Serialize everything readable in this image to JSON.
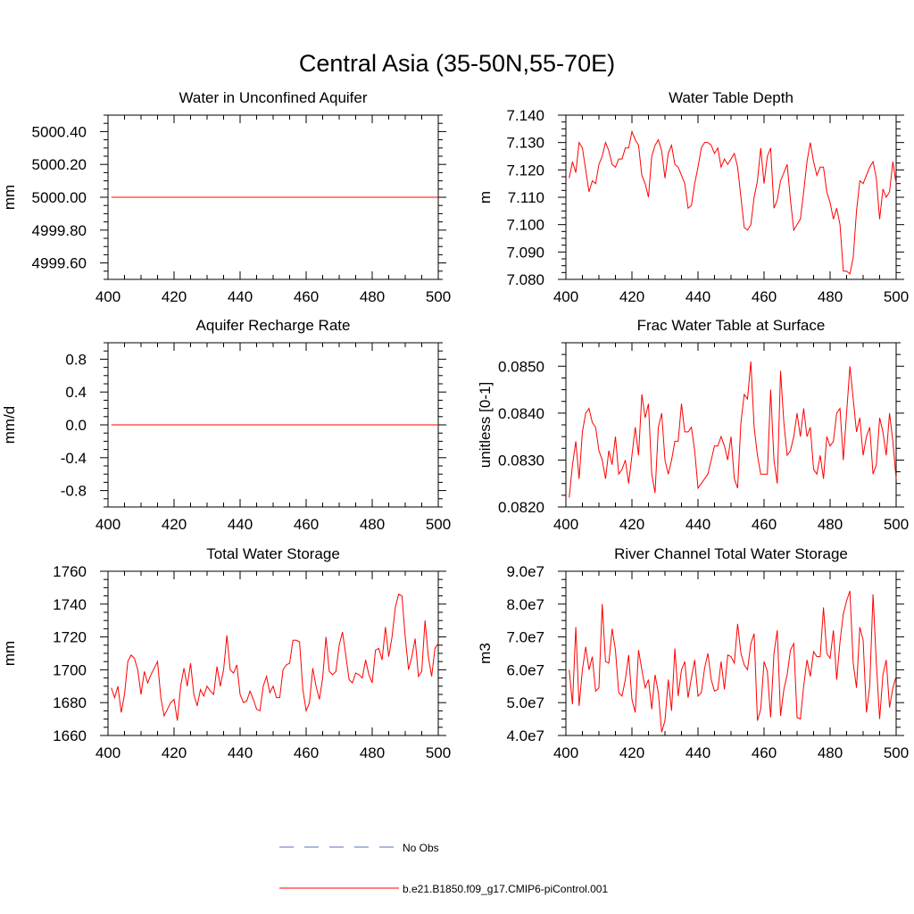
{
  "figure_title": "Central Asia (35-50N,55-70E)",
  "colors": {
    "series": "#ff0000",
    "obs": "#5b6fb3",
    "axis": "#000000"
  },
  "legend": {
    "obs_label": "No Obs",
    "model_label": "b.e21.B1850.f09_g17.CMIP6-piControl.001"
  },
  "chart_data": [
    {
      "type": "line",
      "title": "Water in Unconfined Aquifer",
      "ylabel": "mm",
      "xlim": [
        400,
        500
      ],
      "ylim": [
        4999.5,
        5000.5
      ],
      "xticks": [
        400,
        420,
        440,
        460,
        480,
        500
      ],
      "yticks": [
        4999.6,
        4999.8,
        5000.0,
        5000.2,
        5000.4
      ],
      "ytick_labels": [
        "4999.60",
        "4999.80",
        "5000.00",
        "5000.20",
        "5000.40"
      ],
      "x_start": 401,
      "series": [
        {
          "values": [
            5000,
            5000,
            5000,
            5000,
            5000,
            5000,
            5000,
            5000,
            5000,
            5000,
            5000,
            5000,
            5000,
            5000,
            5000,
            5000,
            5000,
            5000,
            5000,
            5000,
            5000,
            5000,
            5000,
            5000,
            5000,
            5000,
            5000,
            5000,
            5000,
            5000,
            5000,
            5000,
            5000,
            5000,
            5000,
            5000,
            5000,
            5000,
            5000,
            5000,
            5000,
            5000,
            5000,
            5000,
            5000,
            5000,
            5000,
            5000,
            5000,
            5000,
            5000,
            5000,
            5000,
            5000,
            5000,
            5000,
            5000,
            5000,
            5000,
            5000,
            5000,
            5000,
            5000,
            5000,
            5000,
            5000,
            5000,
            5000,
            5000,
            5000,
            5000,
            5000,
            5000,
            5000,
            5000,
            5000,
            5000,
            5000,
            5000,
            5000,
            5000,
            5000,
            5000,
            5000,
            5000,
            5000,
            5000,
            5000,
            5000,
            5000,
            5000,
            5000,
            5000,
            5000,
            5000,
            5000,
            5000,
            5000,
            5000,
            5000
          ]
        }
      ]
    },
    {
      "type": "line",
      "title": "Water Table Depth",
      "ylabel": "m",
      "xlim": [
        400,
        500
      ],
      "ylim": [
        7.08,
        7.14
      ],
      "xticks": [
        400,
        420,
        440,
        460,
        480,
        500
      ],
      "yticks": [
        7.08,
        7.09,
        7.1,
        7.11,
        7.12,
        7.13,
        7.14
      ],
      "ytick_labels": [
        "7.080",
        "7.090",
        "7.100",
        "7.110",
        "7.120",
        "7.130",
        "7.140"
      ],
      "x_start": 401,
      "series": [
        {
          "values": [
            7.117,
            7.123,
            7.119,
            7.13,
            7.128,
            7.12,
            7.112,
            7.116,
            7.115,
            7.122,
            7.125,
            7.13,
            7.127,
            7.122,
            7.121,
            7.124,
            7.124,
            7.128,
            7.128,
            7.134,
            7.131,
            7.129,
            7.118,
            7.115,
            7.11,
            7.125,
            7.129,
            7.131,
            7.127,
            7.117,
            7.126,
            7.129,
            7.122,
            7.121,
            7.118,
            7.115,
            7.106,
            7.107,
            7.115,
            7.121,
            7.128,
            7.13,
            7.13,
            7.129,
            7.126,
            7.128,
            7.121,
            7.124,
            7.122,
            7.124,
            7.126,
            7.121,
            7.11,
            7.099,
            7.098,
            7.1,
            7.11,
            7.116,
            7.128,
            7.115,
            7.125,
            7.128,
            7.106,
            7.109,
            7.116,
            7.119,
            7.122,
            7.109,
            7.098,
            7.1,
            7.102,
            7.112,
            7.123,
            7.13,
            7.123,
            7.118,
            7.121,
            7.121,
            7.112,
            7.108,
            7.102,
            7.106,
            7.1,
            7.083,
            7.083,
            7.082,
            7.088,
            7.105,
            7.116,
            7.115,
            7.118,
            7.121,
            7.123,
            7.117,
            7.102,
            7.113,
            7.11,
            7.112,
            7.123,
            7.115
          ]
        }
      ]
    },
    {
      "type": "line",
      "title": "Aquifer Recharge Rate",
      "ylabel": "mm/d",
      "xlim": [
        400,
        500
      ],
      "ylim": [
        -1.0,
        1.0
      ],
      "xticks": [
        400,
        420,
        440,
        460,
        480,
        500
      ],
      "yticks": [
        -0.8,
        -0.4,
        0.0,
        0.4,
        0.8
      ],
      "ytick_labels": [
        "-0.8",
        "-0.4",
        "0.0",
        "0.4",
        "0.8"
      ],
      "x_start": 401,
      "series": [
        {
          "values": [
            0,
            0,
            0,
            0,
            0,
            0,
            0,
            0,
            0,
            0,
            0,
            0,
            0,
            0,
            0,
            0,
            0,
            0,
            0,
            0,
            0,
            0,
            0,
            0,
            0,
            0,
            0,
            0,
            0,
            0,
            0,
            0,
            0,
            0,
            0,
            0,
            0,
            0,
            0,
            0,
            0,
            0,
            0,
            0,
            0,
            0,
            0,
            0,
            0,
            0,
            0,
            0,
            0,
            0,
            0,
            0,
            0,
            0,
            0,
            0,
            0,
            0,
            0,
            0,
            0,
            0,
            0,
            0,
            0,
            0,
            0,
            0,
            0,
            0,
            0,
            0,
            0,
            0,
            0,
            0,
            0,
            0,
            0,
            0,
            0,
            0,
            0,
            0,
            0,
            0,
            0,
            0,
            0,
            0,
            0,
            0,
            0,
            0,
            0,
            0
          ]
        }
      ]
    },
    {
      "type": "line",
      "title": "Frac Water Table at Surface",
      "ylabel": "unitless [0-1]",
      "xlim": [
        400,
        500
      ],
      "ylim": [
        0.082,
        0.0855
      ],
      "xticks": [
        400,
        420,
        440,
        460,
        480,
        500
      ],
      "yticks": [
        0.082,
        0.083,
        0.084,
        0.085
      ],
      "ytick_labels": [
        "0.0820",
        "0.0830",
        "0.0840",
        "0.0850"
      ],
      "x_start": 401,
      "series": [
        {
          "values": [
            0.0822,
            0.0829,
            0.0834,
            0.0826,
            0.0836,
            0.084,
            0.0841,
            0.0838,
            0.0837,
            0.0832,
            0.083,
            0.0826,
            0.0832,
            0.0829,
            0.0835,
            0.0827,
            0.0828,
            0.083,
            0.0825,
            0.0831,
            0.0837,
            0.0831,
            0.0844,
            0.0839,
            0.0842,
            0.0827,
            0.0823,
            0.0837,
            0.084,
            0.083,
            0.0827,
            0.083,
            0.0834,
            0.0834,
            0.0842,
            0.0836,
            0.0836,
            0.0837,
            0.0832,
            0.0824,
            0.0825,
            0.0826,
            0.0827,
            0.083,
            0.0833,
            0.0833,
            0.0835,
            0.0833,
            0.083,
            0.0835,
            0.0826,
            0.0824,
            0.0838,
            0.0844,
            0.0843,
            0.0851,
            0.0837,
            0.0831,
            0.0827,
            0.0827,
            0.0827,
            0.0845,
            0.083,
            0.0825,
            0.0849,
            0.0838,
            0.0831,
            0.0832,
            0.0835,
            0.084,
            0.0835,
            0.0841,
            0.0835,
            0.0837,
            0.0828,
            0.0827,
            0.0831,
            0.0826,
            0.0835,
            0.0833,
            0.0834,
            0.084,
            0.0841,
            0.083,
            0.084,
            0.085,
            0.0843,
            0.0836,
            0.0839,
            0.0831,
            0.0835,
            0.0837,
            0.0827,
            0.0829,
            0.0839,
            0.0836,
            0.0831,
            0.084,
            0.0834,
            0.0826
          ]
        }
      ]
    },
    {
      "type": "line",
      "title": "Total Water Storage",
      "ylabel": "mm",
      "xlim": [
        400,
        500
      ],
      "ylim": [
        1660,
        1760
      ],
      "xticks": [
        400,
        420,
        440,
        460,
        480,
        500
      ],
      "yticks": [
        1660,
        1680,
        1700,
        1720,
        1740,
        1760
      ],
      "ytick_labels": [
        "1660",
        "1680",
        "1700",
        "1720",
        "1740",
        "1760"
      ],
      "x_start": 401,
      "series": [
        {
          "values": [
            1689,
            1683,
            1690,
            1674,
            1685,
            1705,
            1709,
            1707,
            1700,
            1685,
            1699,
            1692,
            1697,
            1701,
            1705,
            1683,
            1672,
            1676,
            1680,
            1682,
            1669,
            1690,
            1701,
            1690,
            1704,
            1685,
            1678,
            1688,
            1684,
            1690,
            1687,
            1685,
            1702,
            1690,
            1700,
            1721,
            1700,
            1698,
            1703,
            1685,
            1680,
            1681,
            1687,
            1682,
            1676,
            1675,
            1690,
            1696,
            1686,
            1690,
            1683,
            1683,
            1700,
            1703,
            1704,
            1718,
            1718,
            1717,
            1688,
            1675,
            1680,
            1701,
            1690,
            1682,
            1695,
            1720,
            1699,
            1697,
            1699,
            1715,
            1723,
            1709,
            1694,
            1692,
            1698,
            1697,
            1695,
            1706,
            1697,
            1692,
            1712,
            1713,
            1706,
            1726,
            1708,
            1720,
            1738,
            1746,
            1745,
            1720,
            1700,
            1708,
            1719,
            1696,
            1699,
            1730,
            1708,
            1696,
            1713,
            1716
          ]
        }
      ]
    },
    {
      "type": "line",
      "title": "River Channel Total Water Storage",
      "ylabel": "m3",
      "xlim": [
        400,
        500
      ],
      "ylim": [
        40000000,
        90000000
      ],
      "xticks": [
        400,
        420,
        440,
        460,
        480,
        500
      ],
      "yticks": [
        40000000,
        50000000,
        60000000,
        70000000,
        80000000,
        90000000
      ],
      "ytick_labels": [
        "4.0e7",
        "5.0e7",
        "6.0e7",
        "7.0e7",
        "8.0e7",
        "9.0e7"
      ],
      "x_start": 401,
      "series": [
        {
          "values": [
            60000000,
            49500000,
            73000000,
            49000000,
            60000000,
            67000000,
            60000000,
            64000000,
            53500000,
            54500000,
            80000000,
            62500000,
            62000000,
            72500000,
            66000000,
            53000000,
            52000000,
            57000000,
            64500000,
            51000000,
            47000000,
            66000000,
            60000000,
            54500000,
            57000000,
            48000000,
            58500000,
            53000000,
            41000000,
            44500000,
            57000000,
            47500000,
            66500000,
            52000000,
            60000000,
            62500000,
            51500000,
            57500000,
            63000000,
            52000000,
            53000000,
            60500000,
            65000000,
            57000000,
            53500000,
            54000000,
            62500000,
            54000000,
            64500000,
            64000000,
            62000000,
            74000000,
            65000000,
            61500000,
            60000000,
            68000000,
            71000000,
            44500000,
            48000000,
            62500000,
            59500000,
            45500000,
            65000000,
            72000000,
            46000000,
            54000000,
            58500000,
            66000000,
            68000000,
            45500000,
            45000000,
            55000000,
            63000000,
            58000000,
            65500000,
            64000000,
            64000000,
            79000000,
            65000000,
            63500000,
            72000000,
            57000000,
            68500000,
            77000000,
            81000000,
            84000000,
            62000000,
            54500000,
            73000000,
            69000000,
            47000000,
            55000000,
            83000000,
            62000000,
            45000000,
            58500000,
            63000000,
            48500000,
            54500000,
            58000000
          ]
        }
      ]
    }
  ]
}
